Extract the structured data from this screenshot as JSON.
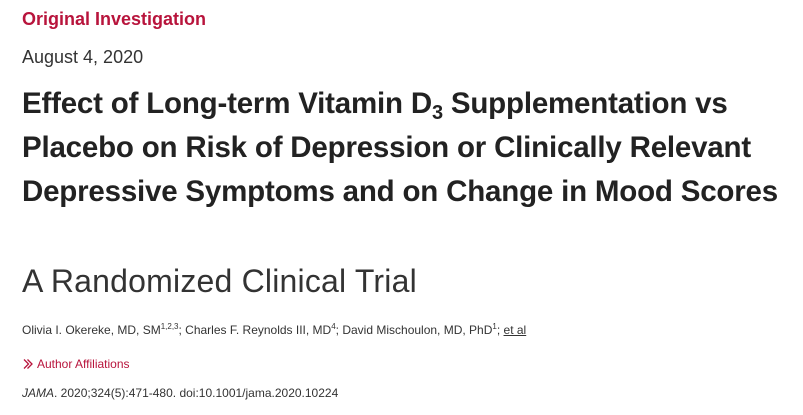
{
  "article": {
    "category": "Original Investigation",
    "date": "August 4, 2020",
    "title": {
      "part1": "Effect of Long-term Vitamin D",
      "subscript": "3",
      "part2": " Supplementation vs Placebo on Risk of Depression or Clinically Relevant Depressive Symptoms and on Change in Mood Scores"
    },
    "subtitle": "A Randomized Clinical Trial",
    "authors": [
      {
        "name": "Olivia I. Okereke, MD, SM",
        "affil": "1,2,3",
        "sep": "; "
      },
      {
        "name": "Charles F. Reynolds III, MD",
        "affil": "4",
        "sep": "; "
      },
      {
        "name": "David Mischoulon, MD, PhD",
        "affil": "1",
        "sep": "; "
      }
    ],
    "et_al": "et al",
    "affiliations_label": "Author Affiliations",
    "citation": {
      "journal": "JAMA",
      "details": ". 2020;324(5):471-480. doi:10.1001/jama.2020.10224"
    }
  },
  "colors": {
    "accent": "#b8143c",
    "text": "#222222"
  },
  "icons": {
    "affiliations": "chevron-right-icon"
  }
}
